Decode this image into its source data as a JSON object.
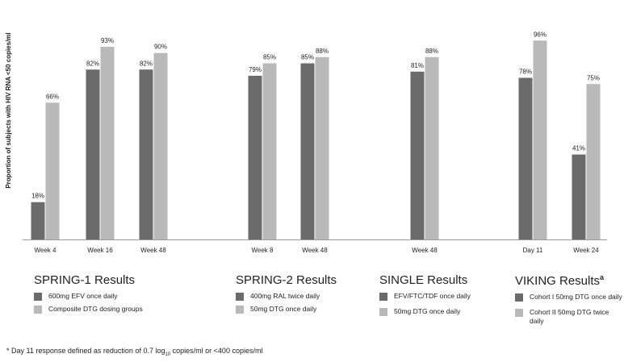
{
  "chart_data": {
    "type": "bar",
    "ylabel": "Proportion of subjects with HIV RNA <50 copies/ml",
    "colors": {
      "series1": "#6b6b6b",
      "series2": "#b9b9b9"
    },
    "ylim": [
      0,
      100
    ],
    "grid": false,
    "bars": [
      {
        "group": 0,
        "category": "Week 4",
        "series": 0,
        "value": 18,
        "label": "18%"
      },
      {
        "group": 0,
        "category": "Week 4",
        "series": 1,
        "value": 66,
        "label": "66%"
      },
      {
        "group": 0,
        "category": "Week 16",
        "series": 0,
        "value": 82,
        "label": "82%"
      },
      {
        "group": 0,
        "category": "Week 16",
        "series": 1,
        "value": 93,
        "label": "93%"
      },
      {
        "group": 0,
        "category": "Week 48",
        "series": 0,
        "value": 82,
        "label": "82%"
      },
      {
        "group": 0,
        "category": "Week 48",
        "series": 1,
        "value": 90,
        "label": "90%"
      },
      {
        "group": 1,
        "category": "Week 8",
        "series": 0,
        "value": 79,
        "label": "79%"
      },
      {
        "group": 1,
        "category": "Week 8",
        "series": 1,
        "value": 85,
        "label": "85%"
      },
      {
        "group": 1,
        "category": "Week 48",
        "series": 0,
        "value": 85,
        "label": "85%"
      },
      {
        "group": 1,
        "category": "Week 48",
        "series": 1,
        "value": 88,
        "label": "88%"
      },
      {
        "group": 2,
        "category": "Week 48",
        "series": 0,
        "value": 81,
        "label": "81%"
      },
      {
        "group": 2,
        "category": "Week 48",
        "series": 1,
        "value": 88,
        "label": "88%"
      },
      {
        "group": 3,
        "category": "Day 11",
        "series": 0,
        "value": 78,
        "label": "78%"
      },
      {
        "group": 3,
        "category": "Day 11",
        "series": 1,
        "value": 96,
        "label": "96%"
      },
      {
        "group": 3,
        "category": "Week 24",
        "series": 0,
        "value": 41,
        "label": "41%"
      },
      {
        "group": 3,
        "category": "Week 24",
        "series": 1,
        "value": 75,
        "label": "75%"
      }
    ],
    "groups": [
      {
        "title": "SPRING-1 Results",
        "legend": [
          "600mg EFV once daily",
          "Composite DTG dosing groups"
        ]
      },
      {
        "title": "SPRING-2 Results",
        "legend": [
          "400mg RAL twice daily",
          "50mg DTG once daily"
        ]
      },
      {
        "title": "SINGLE Results",
        "legend": [
          "EFV/FTC/TDF once daily",
          "50mg DTG once daily"
        ]
      },
      {
        "title": "VIKING Results",
        "title_sup": "a",
        "legend": [
          "Cohort I 50mg DTG once daily",
          "Cohort II 50mg DTG twice daily"
        ]
      }
    ]
  },
  "footnote": {
    "prefix": "* Day 11 response defined as reduction of 0.7 log",
    "sub": "10",
    "suffix": " copies/ml or <400 copies/ml"
  }
}
